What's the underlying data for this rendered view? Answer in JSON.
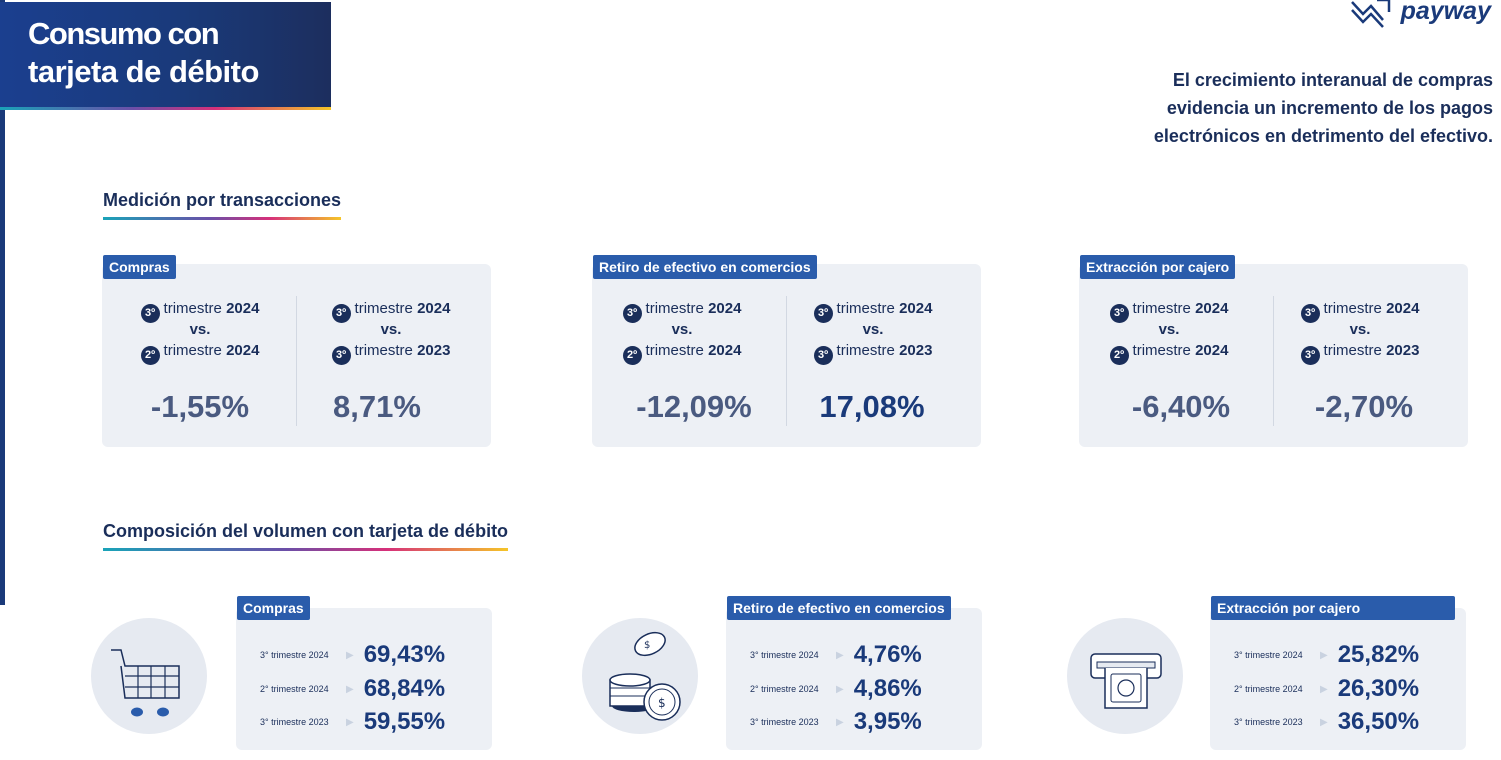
{
  "header": {
    "title_line1": "Consumo con",
    "title_line2": "tarjeta de débito",
    "brand": "payway",
    "tagline": [
      "El crecimiento interanual de compras",
      "evidencia un incremento de los pagos",
      "electrónicos en detrimento del efectivo."
    ]
  },
  "section1": {
    "title": "Medición por transacciones",
    "cards": [
      {
        "tag": "Compras",
        "left": {
          "q1": "3º",
          "a": "trimestre",
          "y1": "2024",
          "vs": "vs.",
          "q2": "2º",
          "b": "trimestre",
          "y2": "2024",
          "value": "-1,55%"
        },
        "right": {
          "q1": "3º",
          "a": "trimestre",
          "y1": "2024",
          "vs": "vs.",
          "q2": "3º",
          "b": "trimestre",
          "y2": "2023",
          "value": "8,71%"
        }
      },
      {
        "tag": "Retiro de efectivo en comercios",
        "left": {
          "q1": "3º",
          "a": "trimestre",
          "y1": "2024",
          "vs": "vs.",
          "q2": "2º",
          "b": "trimestre",
          "y2": "2024",
          "value": "-12,09%"
        },
        "right": {
          "q1": "3º",
          "a": "trimestre",
          "y1": "2024",
          "vs": "vs.",
          "q2": "3º",
          "b": "trimestre",
          "y2": "2023",
          "value": "17,08%"
        }
      },
      {
        "tag": "Extracción por cajero",
        "left": {
          "q1": "3º",
          "a": "trimestre",
          "y1": "2024",
          "vs": "vs.",
          "q2": "2º",
          "b": "trimestre",
          "y2": "2024",
          "value": "-6,40%"
        },
        "right": {
          "q1": "3º",
          "a": "trimestre",
          "y1": "2024",
          "vs": "vs.",
          "q2": "3º",
          "b": "trimestre",
          "y2": "2023",
          "value": "-2,70%"
        }
      }
    ]
  },
  "section2": {
    "title": "Composición del volumen con tarjeta de débito",
    "cards": [
      {
        "tag": "Compras",
        "icon": "shopping-cart-icon",
        "rows": [
          {
            "label": "3° trimestre 2024",
            "value": "69,43%"
          },
          {
            "label": "2° trimestre 2024",
            "value": "68,84%"
          },
          {
            "label": "3° trimestre 2023",
            "value": "59,55%"
          }
        ]
      },
      {
        "tag": "Retiro de efectivo en comercios",
        "icon": "coins-icon",
        "rows": [
          {
            "label": "3° trimestre 2024",
            "value": "4,76%"
          },
          {
            "label": "2° trimestre 2024",
            "value": "4,86%"
          },
          {
            "label": "3° trimestre 2023",
            "value": "3,95%"
          }
        ]
      },
      {
        "tag": "Extracción por cajero",
        "icon": "atm-cash-icon",
        "rows": [
          {
            "label": "3° trimestre 2024",
            "value": "25,82%"
          },
          {
            "label": "2° trimestre 2024",
            "value": "26,30%"
          },
          {
            "label": "3° trimestre 2023",
            "value": "36,50%"
          }
        ]
      }
    ]
  },
  "colors": {
    "navy": "#1a2e5a",
    "brand_blue": "#2a5cab",
    "card_bg": "#edf0f5"
  }
}
